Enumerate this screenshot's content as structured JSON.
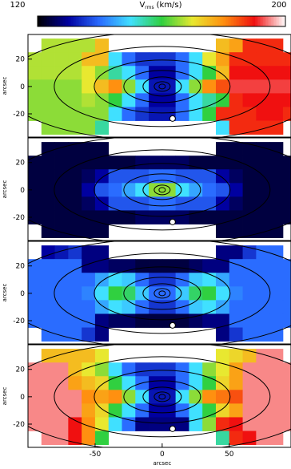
{
  "colorbar": {
    "label_main": "V",
    "label_sub": "rms",
    "label_unit": "(km/s)",
    "clim": [
      120,
      200
    ],
    "ticks": [
      120,
      200
    ],
    "colormap": [
      "#000000",
      "#0000a0",
      "#2a6cff",
      "#40e0ff",
      "#30d040",
      "#e8e830",
      "#ff9010",
      "#f01010",
      "#ffffff"
    ]
  },
  "chart_data": [
    {
      "type": "heatmap",
      "x": [
        -95,
        -85,
        -75,
        -65,
        -55,
        -45,
        -35,
        -25,
        -15,
        -5,
        5,
        15,
        25,
        35,
        45,
        55,
        65,
        75,
        85,
        95
      ],
      "y": [
        30,
        20,
        10,
        0,
        -10,
        -20,
        -30
      ],
      "values": [
        [
          null,
          167,
          167,
          167,
          167,
          175,
          null,
          null,
          null,
          null,
          null,
          null,
          null,
          null,
          175,
          178,
          188,
          188,
          188,
          null
        ],
        [
          167,
          167,
          167,
          167,
          175,
          175,
          150,
          140,
          135,
          135,
          135,
          140,
          150,
          170,
          178,
          188,
          188,
          188,
          188,
          188
        ],
        [
          167,
          167,
          167,
          167,
          170,
          165,
          155,
          150,
          140,
          130,
          130,
          140,
          150,
          160,
          175,
          190,
          190,
          190,
          190,
          190
        ],
        [
          165,
          165,
          165,
          165,
          170,
          175,
          180,
          165,
          150,
          132,
          132,
          150,
          165,
          180,
          185,
          192,
          192,
          192,
          192,
          192
        ],
        [
          165,
          165,
          165,
          165,
          167,
          165,
          160,
          150,
          140,
          130,
          130,
          140,
          150,
          155,
          160,
          188,
          190,
          190,
          190,
          190
        ],
        [
          165,
          165,
          165,
          165,
          165,
          165,
          150,
          140,
          135,
          132,
          132,
          140,
          150,
          160,
          188,
          188,
          188,
          190,
          190,
          188
        ],
        [
          null,
          165,
          165,
          165,
          165,
          155,
          null,
          null,
          null,
          null,
          null,
          null,
          null,
          null,
          150,
          188,
          188,
          188,
          188,
          null
        ]
      ],
      "xlim": [
        -100,
        96
      ],
      "ylim": [
        -37,
        38
      ],
      "yticks": [
        -20,
        0,
        20
      ],
      "ylabel": "arcsec"
    },
    {
      "type": "heatmap",
      "x": [
        -95,
        -85,
        -75,
        -65,
        -55,
        -45,
        -35,
        -25,
        -15,
        -5,
        5,
        15,
        25,
        35,
        45,
        55,
        65,
        75,
        85,
        95
      ],
      "y": [
        30,
        20,
        10,
        0,
        -10,
        -20,
        -30
      ],
      "values": [
        [
          null,
          124,
          124,
          124,
          124,
          124,
          null,
          null,
          null,
          null,
          null,
          null,
          null,
          null,
          124,
          124,
          124,
          124,
          124,
          null
        ],
        [
          124,
          124,
          124,
          124,
          124,
          124,
          124,
          124,
          126,
          126,
          126,
          126,
          124,
          124,
          124,
          124,
          124,
          124,
          124,
          124
        ],
        [
          124,
          124,
          124,
          124,
          126,
          130,
          138,
          138,
          138,
          140,
          140,
          138,
          138,
          138,
          130,
          126,
          124,
          124,
          124,
          124
        ],
        [
          124,
          124,
          124,
          124,
          130,
          138,
          140,
          145,
          150,
          165,
          165,
          150,
          145,
          140,
          138,
          130,
          124,
          124,
          124,
          124
        ],
        [
          124,
          124,
          124,
          124,
          126,
          130,
          138,
          138,
          138,
          140,
          140,
          138,
          138,
          138,
          130,
          126,
          124,
          124,
          124,
          124
        ],
        [
          124,
          124,
          124,
          124,
          124,
          124,
          124,
          124,
          126,
          126,
          126,
          126,
          124,
          124,
          124,
          124,
          124,
          124,
          124,
          124
        ],
        [
          null,
          124,
          124,
          124,
          124,
          124,
          null,
          null,
          null,
          null,
          null,
          null,
          null,
          null,
          124,
          124,
          124,
          124,
          124,
          null
        ]
      ],
      "xlim": [
        -100,
        96
      ],
      "ylim": [
        -37,
        38
      ],
      "yticks": [
        -20,
        0,
        20
      ],
      "ylabel": "arcsec"
    },
    {
      "type": "heatmap",
      "x": [
        -95,
        -85,
        -75,
        -65,
        -55,
        -45,
        -35,
        -25,
        -15,
        -5,
        5,
        15,
        25,
        35,
        45,
        55,
        65,
        75,
        85,
        95
      ],
      "y": [
        30,
        20,
        10,
        0,
        -10,
        -20,
        -30
      ],
      "values": [
        [
          null,
          130,
          132,
          135,
          128,
          128,
          null,
          null,
          null,
          null,
          null,
          null,
          null,
          null,
          128,
          128,
          135,
          140,
          140,
          null
        ],
        [
          140,
          140,
          140,
          140,
          128,
          128,
          126,
          126,
          124,
          124,
          124,
          124,
          126,
          128,
          128,
          140,
          140,
          140,
          140,
          140
        ],
        [
          140,
          140,
          140,
          140,
          140,
          145,
          150,
          148,
          140,
          135,
          135,
          140,
          148,
          150,
          145,
          140,
          140,
          140,
          140,
          140
        ],
        [
          140,
          140,
          140,
          140,
          142,
          150,
          160,
          158,
          148,
          140,
          140,
          148,
          158,
          160,
          150,
          142,
          140,
          140,
          140,
          140
        ],
        [
          140,
          140,
          140,
          140,
          140,
          145,
          150,
          148,
          140,
          135,
          135,
          140,
          148,
          150,
          145,
          140,
          140,
          140,
          140,
          140
        ],
        [
          140,
          140,
          140,
          140,
          140,
          128,
          126,
          126,
          124,
          124,
          124,
          124,
          126,
          128,
          128,
          140,
          140,
          140,
          140,
          140
        ],
        [
          null,
          140,
          140,
          140,
          135,
          128,
          null,
          null,
          null,
          null,
          null,
          null,
          null,
          null,
          128,
          135,
          140,
          140,
          140,
          null
        ]
      ],
      "xlim": [
        -100,
        96
      ],
      "ylim": [
        -37,
        38
      ],
      "yticks": [
        -20,
        0,
        20
      ],
      "ylabel": "arcsec"
    },
    {
      "type": "heatmap",
      "x": [
        -95,
        -85,
        -75,
        -65,
        -55,
        -45,
        -35,
        -25,
        -15,
        -5,
        5,
        15,
        25,
        35,
        45,
        55,
        65,
        75,
        85,
        95
      ],
      "y": [
        30,
        20,
        10,
        0,
        -10,
        -20,
        -30
      ],
      "values": [
        [
          null,
          175,
          175,
          175,
          175,
          170,
          null,
          null,
          null,
          null,
          null,
          null,
          null,
          null,
          170,
          172,
          175,
          195,
          195,
          null
        ],
        [
          195,
          195,
          195,
          175,
          170,
          165,
          150,
          140,
          135,
          135,
          135,
          140,
          150,
          165,
          170,
          178,
          195,
          195,
          195,
          195
        ],
        [
          195,
          195,
          195,
          178,
          175,
          172,
          160,
          150,
          140,
          130,
          130,
          140,
          150,
          160,
          172,
          178,
          195,
          195,
          195,
          195
        ],
        [
          195,
          195,
          195,
          195,
          180,
          178,
          180,
          165,
          150,
          132,
          132,
          150,
          165,
          180,
          182,
          185,
          195,
          195,
          195,
          195
        ],
        [
          195,
          195,
          195,
          195,
          178,
          172,
          160,
          150,
          140,
          130,
          130,
          140,
          150,
          160,
          172,
          178,
          195,
          195,
          195,
          195
        ],
        [
          195,
          195,
          195,
          190,
          180,
          170,
          150,
          140,
          128,
          128,
          128,
          128,
          150,
          165,
          188,
          190,
          195,
          195,
          195,
          195
        ],
        [
          null,
          195,
          195,
          190,
          180,
          160,
          null,
          null,
          null,
          null,
          null,
          null,
          null,
          null,
          155,
          188,
          190,
          195,
          195,
          null
        ]
      ],
      "xlim": [
        -100,
        96
      ],
      "ylim": [
        -37,
        38
      ],
      "yticks": [
        -20,
        0,
        20
      ],
      "ylabel": "arcsec",
      "xticks": [
        -50,
        0,
        50
      ],
      "xlabel": "arcsec"
    }
  ]
}
